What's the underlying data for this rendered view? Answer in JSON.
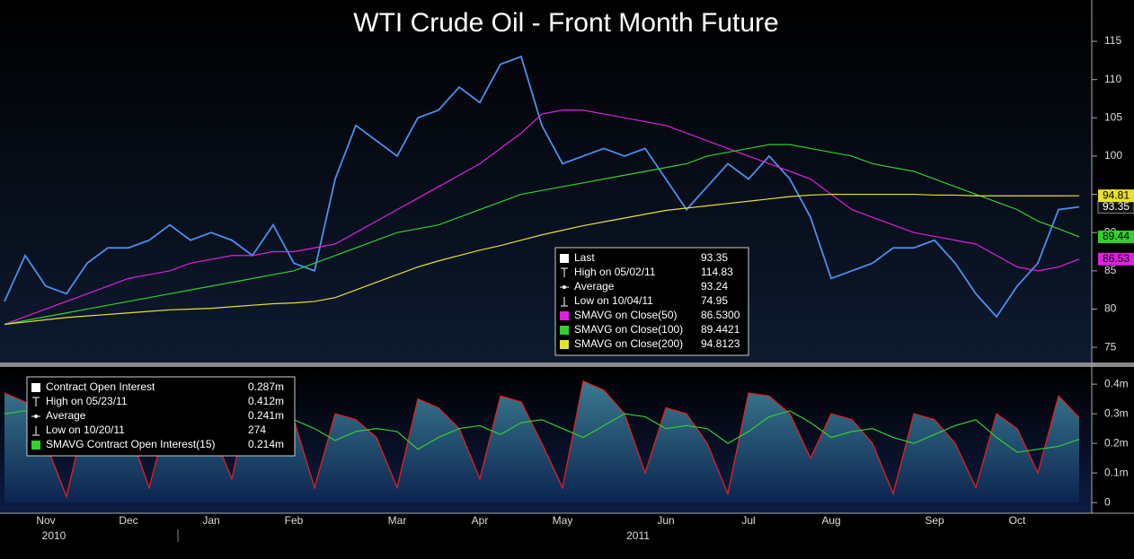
{
  "chart_data": [
    {
      "type": "line",
      "title": "WTI Crude Oil - Front Month Future",
      "ylim": [
        72.9,
        120.4
      ],
      "yticks": [
        75,
        80,
        85,
        90,
        95,
        100,
        105,
        110,
        115
      ],
      "series": [
        {
          "name": "Last",
          "color": "#4a8ff0",
          "values": [
            81,
            87,
            83,
            82,
            86,
            88,
            88,
            89,
            91,
            89,
            90,
            89,
            87,
            91,
            86,
            85,
            97,
            104,
            102,
            100,
            105,
            106,
            109,
            107,
            112,
            113,
            104,
            99,
            100,
            101,
            100,
            101,
            97,
            93,
            96,
            99,
            97,
            100,
            97,
            92,
            84,
            85,
            86,
            88,
            88,
            89,
            86,
            82,
            79,
            83,
            86,
            93,
            93.35
          ],
          "flag": 93.35
        },
        {
          "name": "SMAVG on Close(50)",
          "color": "#e020e0",
          "values": [
            78,
            79,
            80,
            81,
            82,
            83,
            84,
            84.5,
            85,
            86,
            86.5,
            87,
            87,
            87.5,
            87.5,
            88,
            88.5,
            90,
            91.5,
            93,
            94.5,
            96,
            97.5,
            99,
            101,
            103,
            105.5,
            106,
            106,
            105.5,
            105,
            104.5,
            104,
            103,
            102,
            101,
            100,
            99,
            98,
            97,
            95,
            93,
            92,
            91,
            90,
            89.5,
            89,
            88.5,
            87,
            85.5,
            85,
            85.5,
            86.53
          ],
          "flag": 86.53
        },
        {
          "name": "SMAVG on Close(100)",
          "color": "#30d030",
          "values": [
            78,
            78.5,
            79,
            79.5,
            80,
            80.5,
            81,
            81.5,
            82,
            82.5,
            83,
            83.5,
            84,
            84.5,
            85,
            86,
            87,
            88,
            89,
            90,
            90.5,
            91,
            92,
            93,
            94,
            95,
            95.5,
            96,
            96.5,
            97,
            97.5,
            98,
            98.5,
            99,
            100,
            100.5,
            101,
            101.5,
            101.5,
            101,
            100.5,
            100,
            99,
            98.5,
            98,
            97,
            96,
            95,
            94,
            93,
            91.5,
            90.5,
            89.44
          ],
          "flag": 89.44
        },
        {
          "name": "SMAVG on Close(200)",
          "color": "#e8e030",
          "values": [
            78,
            78.3,
            78.6,
            78.9,
            79.1,
            79.3,
            79.5,
            79.7,
            79.9,
            80,
            80.1,
            80.3,
            80.5,
            80.7,
            80.8,
            81,
            81.5,
            82.5,
            83.5,
            84.5,
            85.5,
            86.3,
            87,
            87.7,
            88.3,
            89,
            89.7,
            90.3,
            90.9,
            91.4,
            91.9,
            92.4,
            92.9,
            93.2,
            93.5,
            93.8,
            94.1,
            94.4,
            94.7,
            94.9,
            95,
            95,
            95,
            95,
            95,
            94.9,
            94.9,
            94.8,
            94.8,
            94.8,
            94.8,
            94.8,
            94.81
          ],
          "flag": 94.81
        }
      ],
      "legend": [
        {
          "label": "Last",
          "value": "93.35",
          "color": "#ffffff"
        },
        {
          "label": "High on 05/02/11",
          "value": "114.83"
        },
        {
          "label": "Average",
          "value": "93.24"
        },
        {
          "label": "Low on 10/04/11",
          "value": "74.95"
        },
        {
          "label": "SMAVG on Close(50)",
          "value": "86.5300",
          "color": "#e020e0"
        },
        {
          "label": "SMAVG on Close(100)",
          "value": "89.4421",
          "color": "#30d030"
        },
        {
          "label": "SMAVG on Close(200)",
          "value": "94.8123",
          "color": "#e8e030"
        }
      ]
    },
    {
      "type": "area",
      "x": [
        null,
        null,
        "Nov",
        null,
        null,
        null,
        "Dec",
        null,
        null,
        null,
        "Jan",
        null,
        null,
        null,
        "Feb",
        null,
        null,
        null,
        null,
        "Mar",
        null,
        null,
        null,
        "Apr",
        null,
        null,
        null,
        "May",
        null,
        null,
        null,
        null,
        "Jun",
        null,
        null,
        null,
        "Jul",
        null,
        null,
        null,
        "Aug",
        null,
        null,
        null,
        null,
        "Sep",
        null,
        null,
        null,
        "Oct",
        null,
        null,
        null
      ],
      "year_labels": [
        "2010",
        "2011"
      ],
      "ylim": [
        -0.036,
        0.455
      ],
      "yticks": [
        0,
        {
          "value": 0.1,
          "label": "0.1m"
        },
        {
          "value": 0.2,
          "label": "0.2m"
        },
        {
          "value": 0.3,
          "label": "0.3m"
        },
        {
          "value": 0.4,
          "label": "0.4m"
        }
      ],
      "series": [
        {
          "name": "Contract Open Interest",
          "color": "#e02020",
          "values": [
            0.37,
            0.34,
            0.2,
            0.02,
            0.32,
            0.31,
            0.25,
            0.05,
            0.32,
            0.31,
            0.25,
            0.08,
            0.4,
            0.37,
            0.28,
            0.05,
            0.3,
            0.28,
            0.22,
            0.05,
            0.35,
            0.32,
            0.25,
            0.08,
            0.36,
            0.34,
            0.2,
            0.05,
            0.41,
            0.38,
            0.3,
            0.1,
            0.32,
            0.3,
            0.2,
            0.03,
            0.37,
            0.36,
            0.3,
            0.15,
            0.3,
            0.28,
            0.2,
            0.03,
            0.3,
            0.28,
            0.2,
            0.05,
            0.3,
            0.25,
            0.1,
            0.36,
            0.287
          ]
        },
        {
          "name": "SMAVG Contract Open Interest(15)",
          "color": "#30d030",
          "values": [
            0.3,
            0.31,
            0.28,
            0.24,
            0.2,
            0.22,
            0.25,
            0.24,
            0.22,
            0.24,
            0.26,
            0.25,
            0.22,
            0.26,
            0.28,
            0.25,
            0.21,
            0.24,
            0.25,
            0.24,
            0.18,
            0.22,
            0.25,
            0.26,
            0.23,
            0.27,
            0.28,
            0.25,
            0.22,
            0.26,
            0.3,
            0.29,
            0.25,
            0.26,
            0.25,
            0.2,
            0.24,
            0.29,
            0.31,
            0.27,
            0.22,
            0.24,
            0.25,
            0.22,
            0.2,
            0.23,
            0.26,
            0.28,
            0.22,
            0.17,
            0.18,
            0.19,
            0.214
          ]
        }
      ],
      "legend": [
        {
          "label": "Contract Open Interest",
          "value": "0.287m",
          "color": "#ffffff"
        },
        {
          "label": "High on 05/23/11",
          "value": "0.412m"
        },
        {
          "label": "Average",
          "value": "0.241m"
        },
        {
          "label": "Low on 10/20/11",
          "value": "274"
        },
        {
          "label": "SMAVG Contract Open Interest(15)",
          "value": "0.214m",
          "color": "#30d030"
        }
      ]
    }
  ]
}
